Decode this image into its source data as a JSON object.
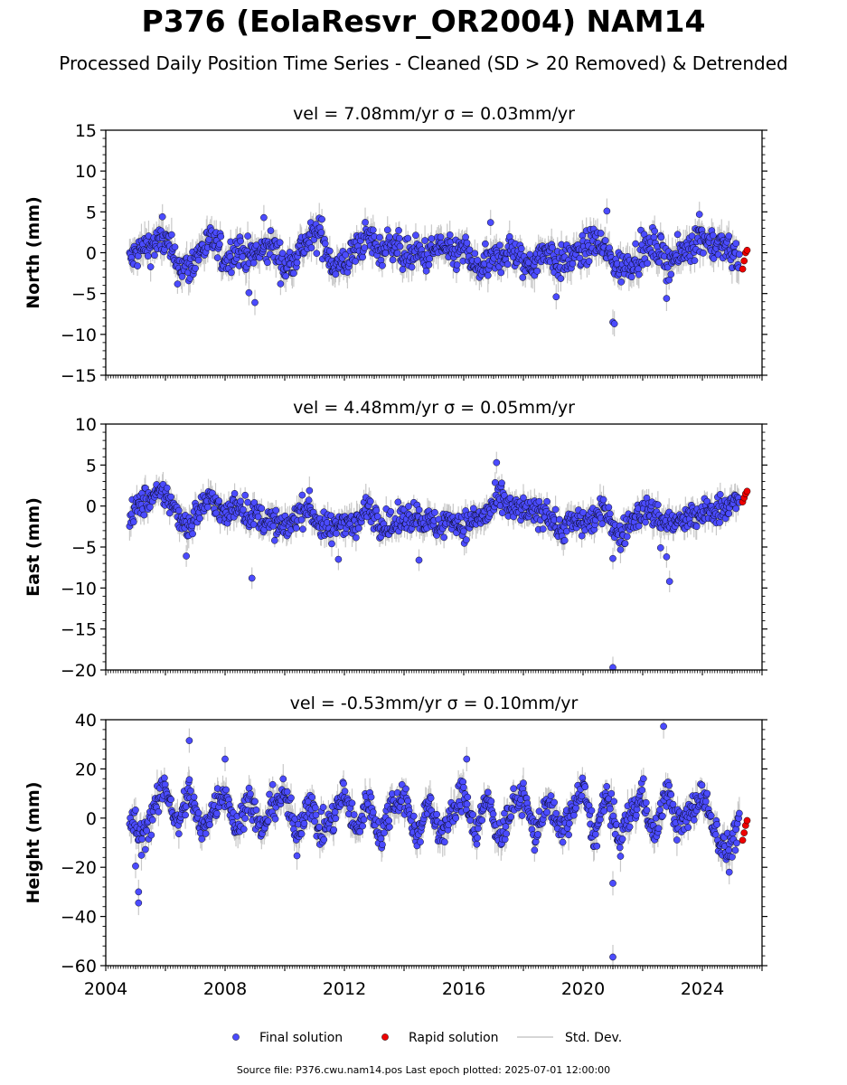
{
  "title": "P376 (EolaResvr_OR2004) NAM14",
  "subtitle": "Processed Daily Position Time Series - Cleaned (SD > 20 Removed) & Detrended",
  "source": "Source file: P376.cwu.nam14.pos  Last epoch plotted: 2025-07-01 12:00:00",
  "colors": {
    "final": "#4b4bff",
    "rapid": "#ee0000",
    "stddev": "#c8c8c8",
    "edge": "#000000"
  },
  "legend": {
    "final": "Final solution",
    "rapid": "Rapid solution",
    "stddev": "Std. Dev."
  },
  "chart_data": [
    {
      "type": "scatter",
      "panel": "north",
      "title": "vel = 7.08mm/yr   σ = 0.03mm/yr",
      "ylabel": "North (mm)",
      "xlim": [
        2004.0,
        2026.0
      ],
      "ylim": [
        -15,
        15
      ],
      "yticks": [
        -15,
        -10,
        -5,
        0,
        5,
        10,
        15
      ],
      "ytick_labels": [
        "−15",
        "−10",
        "−5",
        "0",
        "5",
        "10",
        "15"
      ],
      "spread": 1.4,
      "features": [
        {
          "x": 2021.0,
          "y": -8.5
        },
        {
          "x": 2021.05,
          "y": -8.7
        },
        {
          "x": 2009.0,
          "y": -6.1
        },
        {
          "x": 2022.8,
          "y": -5.6
        },
        {
          "x": 2020.8,
          "y": 5.1
        },
        {
          "x": 2009.3,
          "y": 4.3
        },
        {
          "x": 2005.9,
          "y": 4.4
        },
        {
          "x": 2016.9,
          "y": 3.7
        },
        {
          "x": 2023.9,
          "y": 4.7
        },
        {
          "x": 2008.8,
          "y": -4.9
        },
        {
          "x": 2019.1,
          "y": -5.4
        }
      ],
      "series": [
        {
          "name": "Final solution",
          "x": [
            2004.8,
            2005.2,
            2005.6,
            2006.0,
            2006.4,
            2006.8,
            2007.2,
            2007.6,
            2008.0,
            2008.4,
            2008.8,
            2009.2,
            2009.6,
            2010.0,
            2010.4,
            2010.8,
            2011.2,
            2011.6,
            2012.0,
            2012.4,
            2012.8,
            2013.2,
            2013.6,
            2014.0,
            2014.4,
            2014.8,
            2015.2,
            2015.6,
            2016.0,
            2016.4,
            2016.8,
            2017.2,
            2017.6,
            2018.0,
            2018.4,
            2018.8,
            2019.2,
            2019.6,
            2020.0,
            2020.4,
            2020.8,
            2021.2,
            2021.6,
            2022.0,
            2022.4,
            2022.8,
            2023.2,
            2023.6,
            2024.0,
            2024.4,
            2024.8,
            2025.2
          ],
          "y": [
            -1.0,
            0.5,
            1.0,
            1.5,
            -1.5,
            -2.0,
            0.5,
            1.5,
            -1.0,
            0.5,
            -0.5,
            0.0,
            1.0,
            -2.0,
            0.0,
            1.5,
            2.5,
            -1.5,
            -1.5,
            0.5,
            2.0,
            0.0,
            1.5,
            -0.5,
            0.0,
            -0.5,
            1.0,
            -0.5,
            0.5,
            -2.0,
            -1.5,
            -0.5,
            0.5,
            -1.5,
            -1.0,
            0.5,
            -1.5,
            -0.5,
            0.0,
            1.5,
            0.0,
            -2.0,
            -1.0,
            0.0,
            1.0,
            -1.0,
            -0.5,
            1.0,
            2.0,
            1.0,
            0.5,
            -0.5
          ]
        },
        {
          "name": "Rapid solution",
          "x": [
            2025.35,
            2025.4,
            2025.45,
            2025.5
          ],
          "y": [
            -2.0,
            -1.0,
            0.0,
            0.3
          ]
        }
      ]
    },
    {
      "type": "scatter",
      "panel": "east",
      "title": "vel = 4.48mm/yr   σ = 0.05mm/yr",
      "ylabel": "East (mm)",
      "xlim": [
        2004.0,
        2026.0
      ],
      "ylim": [
        -20,
        10
      ],
      "yticks": [
        -20,
        -15,
        -10,
        -5,
        0,
        5,
        10
      ],
      "ytick_labels": [
        "−20",
        "−15",
        "−10",
        "−5",
        "0",
        "5",
        "10"
      ],
      "spread": 1.2,
      "features": [
        {
          "x": 2021.0,
          "y": -19.7
        },
        {
          "x": 2008.9,
          "y": -8.8
        },
        {
          "x": 2022.9,
          "y": -9.2
        },
        {
          "x": 2017.1,
          "y": 5.3
        },
        {
          "x": 2011.8,
          "y": -6.5
        },
        {
          "x": 2014.5,
          "y": -6.6
        },
        {
          "x": 2006.7,
          "y": -6.1
        },
        {
          "x": 2021.0,
          "y": -6.4
        },
        {
          "x": 2022.8,
          "y": -6.2
        },
        {
          "x": 2022.6,
          "y": -5.1
        }
      ],
      "series": [
        {
          "name": "Final solution",
          "x": [
            2004.8,
            2005.2,
            2005.6,
            2006.0,
            2006.4,
            2006.8,
            2007.2,
            2007.6,
            2008.0,
            2008.4,
            2008.8,
            2009.2,
            2009.6,
            2010.0,
            2010.4,
            2010.8,
            2011.2,
            2011.6,
            2012.0,
            2012.4,
            2012.8,
            2013.2,
            2013.6,
            2014.0,
            2014.4,
            2014.8,
            2015.2,
            2015.6,
            2016.0,
            2016.4,
            2016.8,
            2017.2,
            2017.6,
            2018.0,
            2018.4,
            2018.8,
            2019.2,
            2019.6,
            2020.0,
            2020.4,
            2020.8,
            2021.2,
            2021.6,
            2022.0,
            2022.4,
            2022.8,
            2023.2,
            2023.6,
            2024.0,
            2024.4,
            2024.8,
            2025.2
          ],
          "y": [
            -1.5,
            0.5,
            1.0,
            1.5,
            -1.0,
            -2.5,
            0.0,
            1.0,
            -1.5,
            0.5,
            -1.0,
            -1.5,
            -2.0,
            -3.0,
            -1.0,
            0.0,
            -2.5,
            -3.0,
            -1.5,
            -2.5,
            0.0,
            -2.0,
            -2.5,
            -1.5,
            -1.0,
            -2.0,
            -2.5,
            -1.5,
            -2.5,
            -1.5,
            -1.0,
            1.0,
            -0.5,
            -0.5,
            -1.0,
            -0.5,
            -3.0,
            -2.0,
            -2.0,
            -1.5,
            -0.5,
            -4.0,
            -2.0,
            -0.5,
            -1.0,
            -2.0,
            -2.0,
            -1.5,
            -1.0,
            -0.5,
            0.0,
            0.5
          ]
        },
        {
          "name": "Rapid solution",
          "x": [
            2025.35,
            2025.4,
            2025.45,
            2025.5
          ],
          "y": [
            0.5,
            1.0,
            1.5,
            1.8
          ]
        }
      ]
    },
    {
      "type": "scatter",
      "panel": "height",
      "title": "vel = -0.53mm/yr   σ = 0.10mm/yr",
      "ylabel": "Height (mm)",
      "xlim": [
        2004.0,
        2026.0
      ],
      "ylim": [
        -60,
        40
      ],
      "yticks": [
        -60,
        -40,
        -20,
        0,
        20,
        40
      ],
      "ytick_labels": [
        "−60",
        "−40",
        "−20",
        "0",
        "20",
        "40"
      ],
      "xticks": [
        2004,
        2008,
        2012,
        2016,
        2020,
        2024
      ],
      "xtick_labels": [
        "2004",
        "2008",
        "2012",
        "2016",
        "2020",
        "2024"
      ],
      "spread": 4.5,
      "features": [
        {
          "x": 2021.0,
          "y": -56.5
        },
        {
          "x": 2021.0,
          "y": -26.5
        },
        {
          "x": 2005.1,
          "y": -34.5
        },
        {
          "x": 2005.1,
          "y": -30.0
        },
        {
          "x": 2022.7,
          "y": 37.3
        },
        {
          "x": 2006.8,
          "y": 31.5
        },
        {
          "x": 2008.0,
          "y": 24.0
        },
        {
          "x": 2016.1,
          "y": 24.0
        },
        {
          "x": 2005.0,
          "y": -19.5
        },
        {
          "x": 2024.9,
          "y": -22.0
        }
      ],
      "series": [
        {
          "name": "Final solution",
          "x": [
            2004.8,
            2005.2,
            2005.6,
            2006.0,
            2006.4,
            2006.8,
            2007.2,
            2007.6,
            2008.0,
            2008.4,
            2008.8,
            2009.2,
            2009.6,
            2010.0,
            2010.4,
            2010.8,
            2011.2,
            2011.6,
            2012.0,
            2012.4,
            2012.8,
            2013.2,
            2013.6,
            2014.0,
            2014.4,
            2014.8,
            2015.2,
            2015.6,
            2016.0,
            2016.4,
            2016.8,
            2017.2,
            2017.6,
            2018.0,
            2018.4,
            2018.8,
            2019.2,
            2019.6,
            2020.0,
            2020.4,
            2020.8,
            2021.2,
            2021.6,
            2022.0,
            2022.4,
            2022.8,
            2023.2,
            2023.6,
            2024.0,
            2024.4,
            2024.8,
            2025.2
          ],
          "y": [
            0,
            -8,
            2,
            14,
            -4,
            12,
            -6,
            4,
            12,
            -6,
            10,
            -6,
            6,
            10,
            -8,
            8,
            -6,
            0,
            10,
            -6,
            8,
            -8,
            6,
            10,
            -8,
            6,
            -6,
            0,
            12,
            -6,
            8,
            -8,
            4,
            10,
            -8,
            8,
            -6,
            2,
            12,
            -8,
            10,
            -10,
            2,
            10,
            -8,
            12,
            -4,
            2,
            10,
            -4,
            -14,
            -4
          ]
        },
        {
          "name": "Rapid solution",
          "x": [
            2025.35,
            2025.4,
            2025.45,
            2025.5
          ],
          "y": [
            -9.0,
            -6.0,
            -3.0,
            -1.0
          ]
        }
      ]
    }
  ]
}
